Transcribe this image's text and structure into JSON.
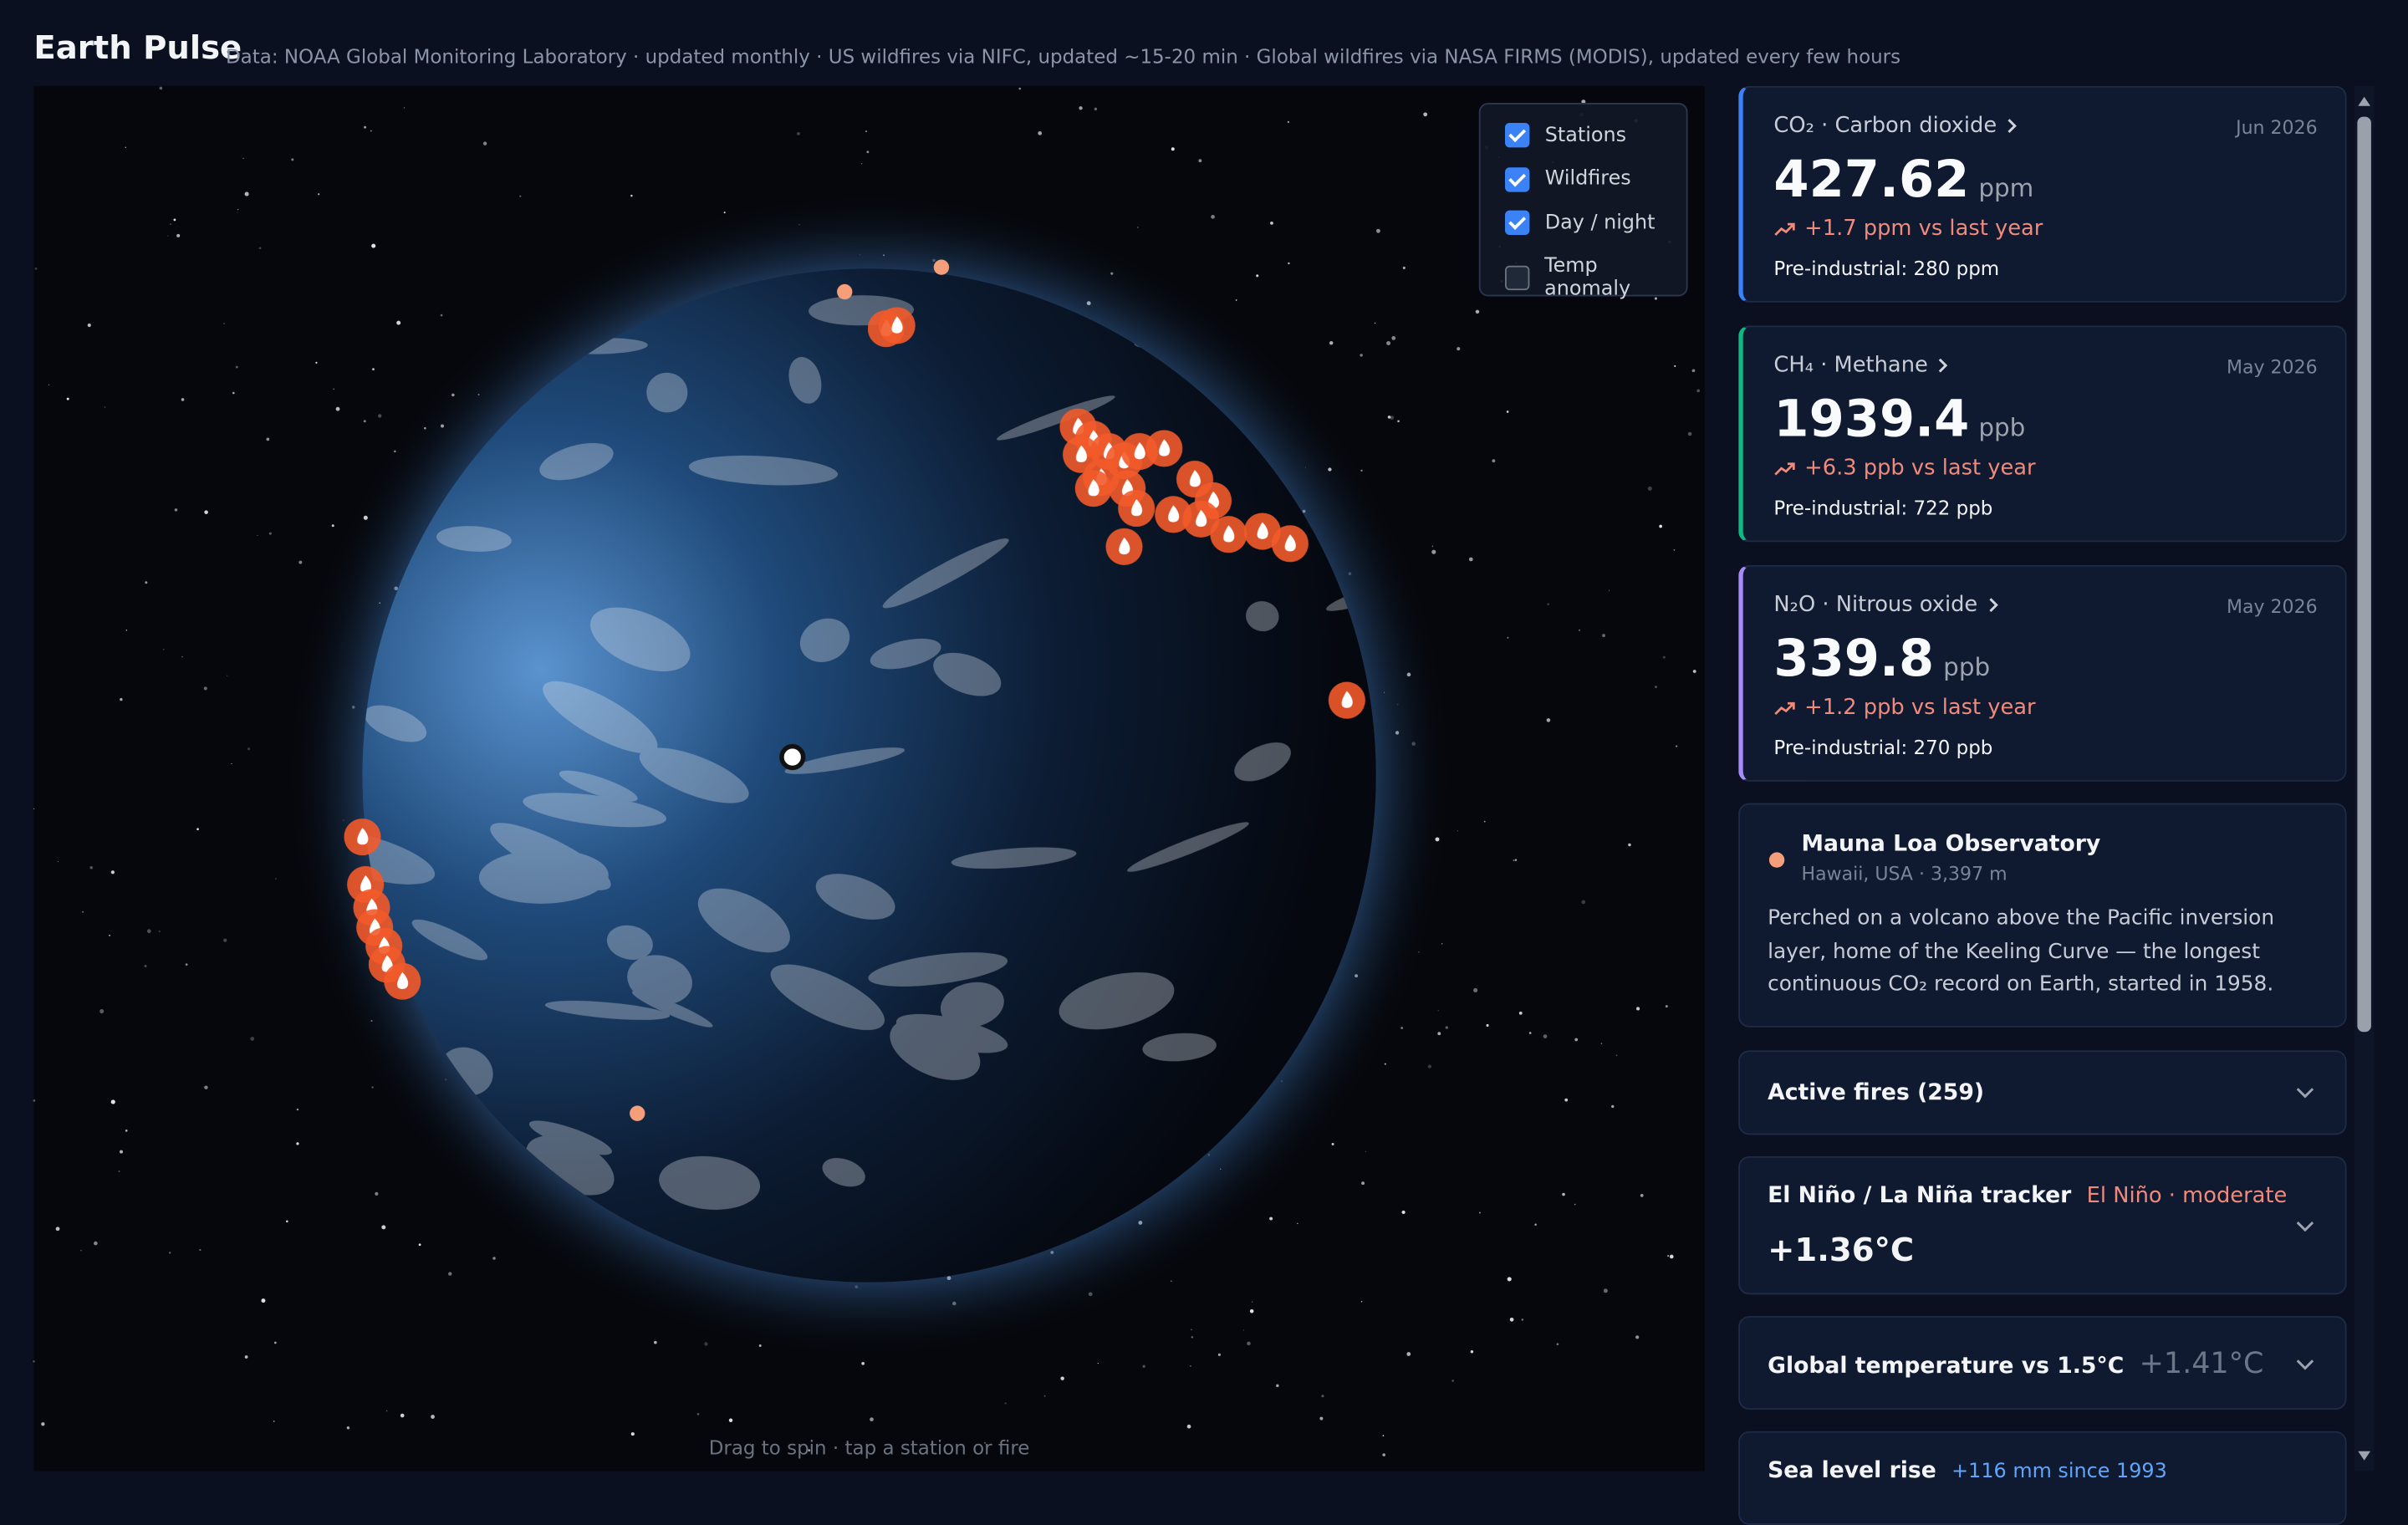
{
  "header": {
    "title": "Earth Pulse",
    "subtitle": "Data: NOAA Global Monitoring Laboratory · updated monthly · US wildfires via NIFC, updated ~15-20 min · Global wildfires via NASA FIRMS (MODIS), updated every few hours"
  },
  "layers": [
    {
      "label": "Stations",
      "checked": true
    },
    {
      "label": "Wildfires",
      "checked": true
    },
    {
      "label": "Day / night",
      "checked": true
    },
    {
      "label": "Temp anomaly",
      "checked": false
    }
  ],
  "globe": {
    "hint": "Drag to spin · tap a station or fire"
  },
  "metrics": [
    {
      "name": "CO₂ · Carbon dioxide",
      "date": "Jun 2026",
      "value": "427.62",
      "unit": "ppm",
      "change": "+1.7 ppm vs last year",
      "baseline": "Pre-industrial: 280 ppm",
      "color": "#3b82f6"
    },
    {
      "name": "CH₄ · Methane",
      "date": "May 2026",
      "value": "1939.4",
      "unit": "ppb",
      "change": "+6.3 ppb vs last year",
      "baseline": "Pre-industrial: 722 ppb",
      "color": "#10b981"
    },
    {
      "name": "N₂O · Nitrous oxide",
      "date": "May 2026",
      "value": "339.8",
      "unit": "ppb",
      "change": "+1.2 ppb vs last year",
      "baseline": "Pre-industrial: 270 ppb",
      "color": "#a78bfa"
    }
  ],
  "station": {
    "name": "Mauna Loa Observatory",
    "location": "Hawaii, USA · 3,397 m",
    "description": "Perched on a volcano above the Pacific inversion layer, home of the Keeling Curve — the longest continuous CO₂ record on Earth, started in 1958."
  },
  "panels": [
    {
      "title": "Active fires (259)"
    },
    {
      "title": "El Niño / La Niña tracker",
      "status": "El Niño · moderate",
      "value": "+1.36°C"
    },
    {
      "title": "Global temperature vs 1.5°C",
      "value": "+1.41°C"
    },
    {
      "title": "Sea level rise",
      "status": "+116 mm since 1993"
    }
  ]
}
